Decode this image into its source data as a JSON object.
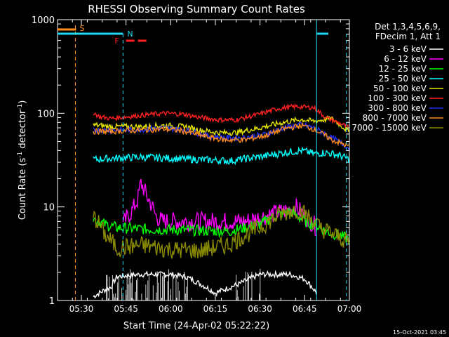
{
  "chart_data": {
    "type": "line",
    "title": "RHESSI Observing Summary Count Rates",
    "xlabel": "Start Time (24-Apr-02 05:22:22)",
    "ylabel_main": "Count Rate (s",
    "ylabel_sup1": "-1",
    "ylabel_mid": " detector",
    "ylabel_sup2": "-1",
    "ylabel_end": ")",
    "y_scale": "log",
    "ylim": [
      1,
      1000
    ],
    "xlim_minutes": [
      -8,
      90
    ],
    "x_ticks": [
      {
        "m": 0,
        "label": "05:30"
      },
      {
        "m": 15,
        "label": "05:45"
      },
      {
        "m": 30,
        "label": "06:00"
      },
      {
        "m": 45,
        "label": "06:15"
      },
      {
        "m": 60,
        "label": "06:30"
      },
      {
        "m": 75,
        "label": "06:45"
      },
      {
        "m": 90,
        "label": "07:00"
      }
    ],
    "y_ticks": [
      {
        "v": 1,
        "label": "1"
      },
      {
        "v": 10,
        "label": "10"
      },
      {
        "v": 100,
        "label": "100"
      },
      {
        "v": 1000,
        "label": "1000"
      }
    ],
    "legend_header": [
      "Det 1,3,4,5,6,9,",
      "FDecim 1, Att 1"
    ],
    "legend_position": "right",
    "flags": [
      {
        "label": "S",
        "color": "#ff8c1a"
      },
      {
        "label": "N",
        "color": "#20d8f0"
      },
      {
        "label": "F",
        "color": "#ff2020"
      }
    ],
    "series": [
      {
        "name": "3 - 6 keV",
        "color": "#ffffff",
        "x": [
          4,
          10,
          12,
          20,
          30,
          35,
          45,
          53,
          60,
          70,
          75,
          79
        ],
        "y": [
          1.1,
          1.4,
          1.8,
          1.9,
          1.9,
          1.8,
          1.2,
          1.5,
          1.9,
          1.9,
          1.7,
          1.2
        ]
      },
      {
        "name": "6 - 12 keV",
        "color": "#ff00ff",
        "x": [
          14,
          17,
          19,
          20,
          22,
          25,
          27,
          35,
          45,
          55,
          62,
          68,
          72,
          75,
          79
        ],
        "y": [
          6.5,
          9,
          12,
          18,
          13,
          8,
          7,
          7,
          7,
          7,
          8,
          9,
          10,
          8,
          6
        ]
      },
      {
        "name": "12 - 25 keV",
        "color": "#00ff00",
        "x": [
          4,
          8,
          12,
          20,
          30,
          40,
          50,
          60,
          65,
          70,
          75,
          78,
          82,
          86,
          90
        ],
        "y": [
          7.5,
          6.5,
          6,
          5.8,
          5.7,
          5.6,
          5.5,
          6.5,
          8,
          9,
          7,
          6.5,
          5.5,
          5,
          4.5
        ]
      },
      {
        "name": "25 - 50 keV",
        "color": "#00ffff",
        "x": [
          4,
          10,
          20,
          30,
          40,
          50,
          56,
          62,
          68,
          74,
          78,
          82,
          86,
          90
        ],
        "y": [
          32,
          33,
          34,
          33,
          32,
          31,
          33,
          35,
          38,
          40,
          37,
          38,
          36,
          32
        ]
      },
      {
        "name": "50 - 100 keV",
        "color": "#e6e600",
        "x": [
          4,
          10,
          20,
          28,
          35,
          40,
          46,
          52,
          60,
          68,
          74,
          78,
          84,
          90
        ],
        "y": [
          75,
          72,
          72,
          74,
          72,
          66,
          62,
          62,
          70,
          80,
          86,
          82,
          88,
          62
        ]
      },
      {
        "name": "100 - 300 keV",
        "color": "#ff2020",
        "x": [
          4,
          6,
          10,
          20,
          28,
          34,
          40,
          46,
          52,
          60,
          66,
          72,
          78,
          82,
          86,
          90
        ],
        "y": [
          102,
          92,
          88,
          95,
          100,
          98,
          90,
          85,
          85,
          98,
          112,
          118,
          115,
          90,
          80,
          70
        ]
      },
      {
        "name": "300 - 800 keV",
        "color": "#1f2ff0",
        "x": [
          4,
          10,
          20,
          28,
          35,
          42,
          48,
          55,
          62,
          68,
          74,
          78,
          84,
          90
        ],
        "y": [
          66,
          66,
          67,
          70,
          66,
          58,
          55,
          55,
          60,
          70,
          76,
          70,
          55,
          42
        ]
      },
      {
        "name": "800 - 7000 keV",
        "color": "#ff8c1a",
        "x": [
          4,
          10,
          20,
          28,
          35,
          42,
          48,
          55,
          62,
          68,
          74,
          78,
          84,
          90
        ],
        "y": [
          64,
          64,
          66,
          68,
          64,
          56,
          52,
          52,
          58,
          68,
          74,
          68,
          52,
          44
        ]
      },
      {
        "name": "7000 - 15000 keV",
        "color": "#8a8a00",
        "x": [
          4,
          8,
          12,
          20,
          30,
          40,
          50,
          60,
          66,
          72,
          76,
          80,
          85,
          90
        ],
        "y": [
          8,
          5,
          3.6,
          3.9,
          3.5,
          3.4,
          4,
          6,
          8,
          9.5,
          8,
          6,
          5,
          4.2
        ]
      }
    ],
    "footer_timestamp": "15-Oct-2021 03:45"
  }
}
